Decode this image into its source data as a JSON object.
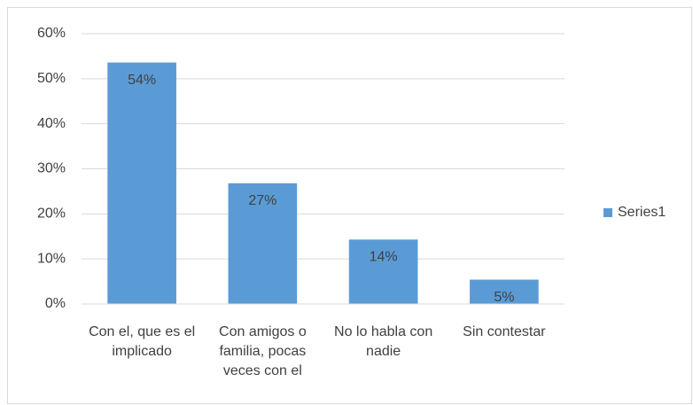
{
  "chart_data": {
    "type": "bar",
    "categories": [
      "Con el, que es el implicado",
      "Con amigos o familia, pocas veces con el",
      "No lo habla con nadie",
      "Sin contestar"
    ],
    "series": [
      {
        "name": "Series1",
        "color": "#5b9bd5",
        "values": [
          53.6,
          26.8,
          14.3,
          5.4
        ],
        "value_labels": [
          "54%",
          "27%",
          "14%",
          "5%"
        ]
      }
    ],
    "ylim": [
      0,
      60
    ],
    "yticks": [
      {
        "value": 0,
        "label": "0%"
      },
      {
        "value": 10,
        "label": "10%"
      },
      {
        "value": 20,
        "label": "20%"
      },
      {
        "value": 30,
        "label": "30%"
      },
      {
        "value": 40,
        "label": "40%"
      },
      {
        "value": 50,
        "label": "50%"
      },
      {
        "value": 60,
        "label": "60%"
      }
    ],
    "grid": true,
    "legend": "right"
  }
}
